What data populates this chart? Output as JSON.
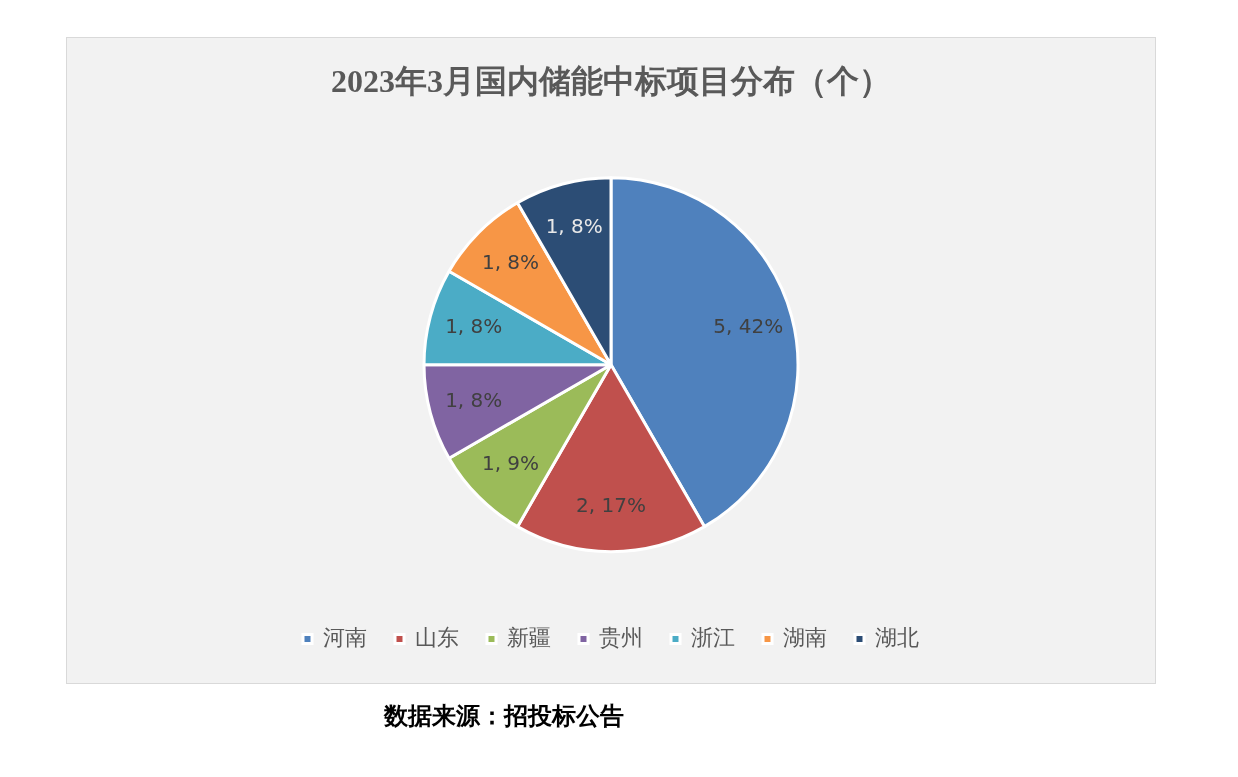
{
  "chart_data": {
    "type": "pie",
    "title": "2023年3月国内储能中标项目分布（个）",
    "categories": [
      "河南",
      "山东",
      "新疆",
      "贵州",
      "浙江",
      "湖南",
      "湖北"
    ],
    "values": [
      5,
      2,
      1,
      1,
      1,
      1,
      1
    ],
    "colors": [
      "#4f81bd",
      "#c0504d",
      "#9bbb59",
      "#8064a2",
      "#4bacc6",
      "#f79646",
      "#2c4d75"
    ],
    "value_labels": [
      "5, 42%",
      "2, 17%",
      "1, 9%",
      "1, 8%",
      "1, 8%",
      "1, 8%",
      "1, 8%"
    ],
    "legend": "bottom",
    "annotations": [
      "数据来源：招投标公告"
    ]
  }
}
